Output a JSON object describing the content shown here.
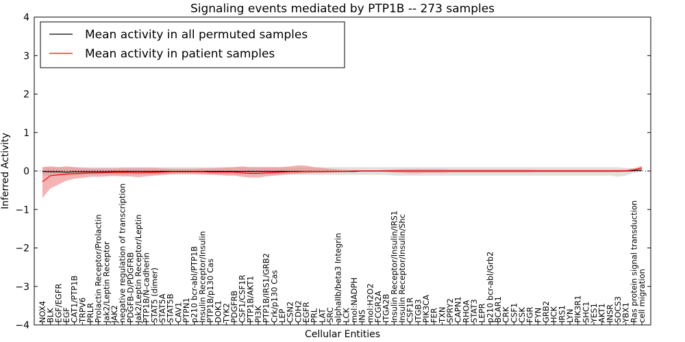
{
  "chart_data": {
    "type": "line",
    "title": "Signaling events mediated by PTP1B -- 273 samples",
    "xlabel": "Cellular Entities",
    "ylabel": "Inferred Activity",
    "ylim": [
      -4,
      4
    ],
    "yticks": [
      -4,
      -3,
      -2,
      -1,
      0,
      1,
      2,
      3,
      4
    ],
    "ytick_labels": [
      "−4",
      "−3",
      "−2",
      "−1",
      "0",
      "1",
      "2",
      "3",
      "4"
    ],
    "legend_position": "top-left",
    "categories": [
      "NOX4",
      "BLK",
      "EGF/EGFR",
      "EGF",
      "CAT1/PTP1B",
      "TRPV6",
      "PRLR",
      "Prolactin Receptor/Prolactin",
      "Jak2/Leptin Receptor",
      "JAK2",
      "negative regulation of transcription",
      "PDGFB-D/PDGFRB",
      "Jak2/Leptin Receptor/Leptin",
      "PTP1B/N-cadherin",
      "STAT5 (dimer)",
      "STAT5A",
      "STAT5B",
      "CAV1",
      "PTPN1",
      "p210 bcr-abl/PTP1B",
      "Insulin Receptor/Insulin",
      "PTP1B/p130 Cas",
      "DOK1",
      "TYK2",
      "PDGFRB",
      "CSF1/CSF1R",
      "PTP1B/AKT1",
      "PI3K",
      "PTP1B/IRS1/GRB2",
      "Crk/p130 Cas",
      "LEP",
      "CSN2",
      "CDH2",
      "EGFR",
      "PRL",
      "LAT",
      "SRC",
      "alphaIIb/beta3 Integrin",
      "LCK",
      "mol:NADPH",
      "INS",
      "mol:H2O2",
      "FCGR2A",
      "ITGA2B",
      "Insulin Receptor/Insulin/IRS1",
      "Insulin Receptor/Insulin/Shc",
      "CSF1R",
      "ITGB3",
      "PIK3CA",
      "FER",
      "TXN",
      "SPRY2",
      "CAPN1",
      "RHOA",
      "STAT3",
      "LEPR",
      "p210 bcr-abl/Grb2",
      "BCAR1",
      "CRK",
      "CSF1",
      "CSK",
      "FGR",
      "FYN",
      "GRB2",
      "HCK",
      "IRS1",
      "LYN",
      "PIK3R1",
      "SHC1",
      "YES1",
      "AKT1",
      "INSR",
      "SOCS3",
      "YBX1",
      "Ras protein signal transduction",
      "cell migration"
    ],
    "series": [
      {
        "name": "Mean activity in all permuted samples",
        "color": "#000000",
        "band_color": "#c8c8c8",
        "values": [
          -0.01,
          -0.02,
          -0.02,
          -0.03,
          -0.02,
          -0.02,
          -0.02,
          -0.02,
          -0.02,
          -0.01,
          -0.01,
          -0.01,
          -0.01,
          -0.01,
          -0.01,
          -0.01,
          -0.01,
          -0.01,
          -0.01,
          -0.01,
          -0.01,
          -0.01,
          -0.01,
          -0.01,
          -0.01,
          -0.01,
          -0.01,
          -0.01,
          -0.01,
          -0.01,
          -0.01,
          -0.01,
          -0.01,
          -0.01,
          -0.01,
          -0.01,
          -0.01,
          -0.01,
          -0.01,
          -0.01,
          0,
          0,
          0,
          0,
          0,
          0,
          0,
          0,
          0,
          0,
          0,
          0,
          0,
          0,
          0,
          0,
          0,
          0,
          0,
          0,
          0,
          0,
          0,
          0,
          0,
          0,
          0,
          0,
          0,
          0,
          0,
          0,
          0,
          0,
          0.01,
          0.02
        ],
        "band_lower": [
          -0.12,
          -0.12,
          -0.11,
          -0.11,
          -0.11,
          -0.11,
          -0.1,
          -0.1,
          -0.1,
          -0.1,
          -0.1,
          -0.1,
          -0.1,
          -0.1,
          -0.1,
          -0.1,
          -0.1,
          -0.1,
          -0.1,
          -0.1,
          -0.1,
          -0.1,
          -0.1,
          -0.1,
          -0.1,
          -0.1,
          -0.1,
          -0.1,
          -0.1,
          -0.1,
          -0.1,
          -0.1,
          -0.1,
          -0.1,
          -0.1,
          -0.1,
          -0.1,
          -0.1,
          -0.1,
          -0.1,
          -0.1,
          -0.1,
          -0.1,
          -0.1,
          -0.12,
          -0.12,
          -0.12,
          -0.12,
          -0.12,
          -0.12,
          -0.12,
          -0.12,
          -0.12,
          -0.12,
          -0.12,
          -0.12,
          -0.12,
          -0.12,
          -0.12,
          -0.12,
          -0.12,
          -0.12,
          -0.12,
          -0.12,
          -0.12,
          -0.12,
          -0.12,
          -0.12,
          -0.12,
          -0.12,
          -0.12,
          -0.12,
          -0.15,
          -0.12,
          -0.05,
          -0.02
        ],
        "band_upper": [
          0.1,
          0.1,
          0.1,
          0.1,
          0.1,
          0.1,
          0.1,
          0.1,
          0.1,
          0.1,
          0.1,
          0.1,
          0.1,
          0.1,
          0.1,
          0.1,
          0.1,
          0.1,
          0.1,
          0.1,
          0.1,
          0.1,
          0.1,
          0.1,
          0.1,
          0.1,
          0.1,
          0.1,
          0.1,
          0.1,
          0.1,
          0.1,
          0.1,
          0.1,
          0.1,
          0.1,
          0.1,
          0.1,
          0.1,
          0.1,
          0.1,
          0.1,
          0.1,
          0.1,
          0.1,
          0.1,
          0.1,
          0.1,
          0.1,
          0.1,
          0.1,
          0.1,
          0.1,
          0.1,
          0.1,
          0.1,
          0.1,
          0.1,
          0.1,
          0.1,
          0.1,
          0.1,
          0.1,
          0.1,
          0.1,
          0.1,
          0.1,
          0.1,
          0.1,
          0.1,
          0.1,
          0.1,
          0.1,
          0.08,
          0.07,
          0.05
        ]
      },
      {
        "name": "Mean activity in patient samples",
        "color": "#ff0000",
        "band_color": "#f08080",
        "values": [
          -0.28,
          -0.12,
          -0.1,
          -0.08,
          -0.07,
          -0.06,
          -0.05,
          -0.05,
          -0.04,
          -0.04,
          -0.04,
          -0.04,
          -0.05,
          -0.04,
          -0.04,
          -0.03,
          -0.02,
          -0.02,
          -0.02,
          -0.02,
          -0.02,
          -0.03,
          -0.03,
          -0.03,
          -0.03,
          -0.05,
          -0.06,
          -0.06,
          -0.05,
          -0.04,
          -0.03,
          -0.02,
          -0.02,
          -0.01,
          -0.01,
          -0.01,
          -0.01,
          -0.01,
          -0.01,
          0,
          0,
          0,
          0,
          0,
          0,
          0,
          0,
          0,
          0,
          0,
          0,
          0,
          0,
          0,
          0,
          0,
          0,
          0,
          0,
          0,
          0,
          0,
          0,
          0,
          0,
          0,
          0,
          0,
          0,
          0,
          0,
          0,
          0,
          0,
          0.03,
          0.08
        ],
        "band_lower": [
          -0.7,
          -0.45,
          -0.35,
          -0.25,
          -0.2,
          -0.18,
          -0.15,
          -0.15,
          -0.14,
          -0.13,
          -0.14,
          -0.14,
          -0.16,
          -0.14,
          -0.12,
          -0.1,
          -0.08,
          -0.07,
          -0.07,
          -0.07,
          -0.08,
          -0.09,
          -0.1,
          -0.12,
          -0.12,
          -0.15,
          -0.17,
          -0.17,
          -0.14,
          -0.12,
          -0.1,
          -0.08,
          -0.07,
          -0.06,
          -0.05,
          -0.05,
          -0.04,
          -0.03,
          -0.02,
          -0.01,
          -0.01,
          -0.01,
          -0.01,
          -0.02,
          -0.04,
          -0.05,
          -0.06,
          -0.06,
          -0.05,
          -0.05,
          -0.05,
          -0.04,
          -0.04,
          -0.04,
          -0.04,
          -0.04,
          -0.04,
          -0.04,
          -0.04,
          -0.04,
          -0.04,
          -0.04,
          -0.03,
          -0.03,
          -0.03,
          -0.03,
          -0.03,
          -0.03,
          -0.03,
          -0.03,
          -0.03,
          -0.03,
          -0.03,
          -0.02,
          -0.01,
          0.02
        ],
        "band_upper": [
          0.1,
          0.12,
          0.1,
          0.12,
          0.1,
          0.08,
          0.07,
          0.07,
          0.07,
          0.07,
          0.08,
          0.08,
          0.08,
          0.08,
          0.08,
          0.07,
          0.06,
          0.06,
          0.06,
          0.06,
          0.07,
          0.07,
          0.08,
          0.09,
          0.1,
          0.12,
          0.1,
          0.1,
          0.1,
          0.1,
          0.1,
          0.12,
          0.15,
          0.14,
          0.1,
          0.08,
          0.06,
          0.04,
          0.03,
          0.02,
          0.02,
          0.02,
          0.02,
          0.03,
          0.04,
          0.05,
          0.05,
          0.05,
          0.05,
          0.05,
          0.05,
          0.04,
          0.04,
          0.04,
          0.04,
          0.04,
          0.04,
          0.04,
          0.04,
          0.04,
          0.04,
          0.04,
          0.03,
          0.03,
          0.03,
          0.03,
          0.03,
          0.03,
          0.03,
          0.03,
          0.03,
          0.03,
          0.03,
          0.04,
          0.07,
          0.13
        ]
      }
    ]
  }
}
